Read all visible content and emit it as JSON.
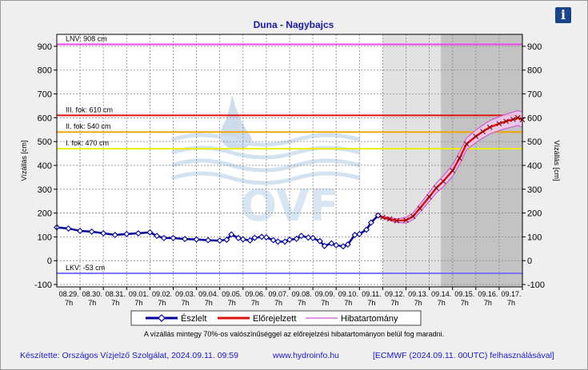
{
  "chart_data": {
    "type": "line",
    "title": "Duna - Nagybajcs",
    "ylabel": "Vízállás [cm]",
    "ylabel_right": "Vízállás [cm]",
    "ylim": [
      -110,
      950
    ],
    "yticks": [
      -100,
      0,
      100,
      200,
      300,
      400,
      500,
      600,
      700,
      800,
      900
    ],
    "xlim": [
      0,
      20
    ],
    "date_labels": [
      "08.29.",
      "08.30.",
      "08.31.",
      "09.01.",
      "09.02.",
      "09.03.",
      "09.04.",
      "09.05.",
      "09.06.",
      "09.07.",
      "09.08.",
      "09.09.",
      "09.10.",
      "09.11.",
      "09.12.",
      "09.13.",
      "09.14.",
      "09.15.",
      "09.16.",
      "09.17."
    ],
    "hour_label": "7h",
    "reference_lines": [
      {
        "label": "LNV: 908 cm",
        "value": 908,
        "color": "#ee44ee"
      },
      {
        "label": "III. fok: 610 cm",
        "value": 610,
        "color": "#e01010"
      },
      {
        "label": "II. fok: 540 cm",
        "value": 540,
        "color": "#f0a800"
      },
      {
        "label": "I. fok: 470 cm",
        "value": 470,
        "color": "#eeee00"
      },
      {
        "label": "LKV: -53 cm",
        "value": -53,
        "color": "#7777ff"
      }
    ],
    "shaded_regions": [
      {
        "from": 14.0,
        "to": 16.5,
        "color": "#e2e2e2"
      },
      {
        "from": 16.5,
        "to": 20.0,
        "color": "#c3c3c3"
      }
    ],
    "series": [
      {
        "name": "Észlelt",
        "color": "#00009c",
        "x": [
          0,
          0.5,
          1,
          1.5,
          2,
          2.5,
          3,
          3.5,
          4,
          4.3,
          4.6,
          5,
          5.5,
          6,
          6.5,
          7,
          7.3,
          7.5,
          7.8,
          8,
          8.3,
          8.5,
          8.8,
          9,
          9.3,
          9.5,
          9.8,
          10,
          10.3,
          10.5,
          10.8,
          11,
          11.3,
          11.5,
          11.8,
          12,
          12.3,
          12.5,
          12.8,
          13,
          13.3,
          13.5,
          13.8
        ],
        "values": [
          140,
          135,
          125,
          122,
          115,
          108,
          112,
          115,
          119,
          104,
          95,
          95,
          91,
          89,
          86,
          84,
          88,
          110,
          95,
          90,
          85,
          96,
          100,
          98,
          86,
          80,
          80,
          88,
          92,
          104,
          97,
          95,
          82,
          62,
          73,
          65,
          60,
          68,
          108,
          112,
          130,
          160,
          190
        ]
      },
      {
        "name": "Előrejelzett",
        "color": "#dd1010",
        "x": [
          13.8,
          14,
          14.3,
          14.6,
          15,
          15.3,
          15.6,
          16,
          16.3,
          16.6,
          17,
          17.3,
          17.6,
          18,
          18.3,
          18.6,
          19,
          19.3,
          19.6,
          19.8,
          20
        ],
        "values": [
          190,
          182,
          175,
          168,
          170,
          186,
          220,
          268,
          305,
          333,
          378,
          430,
          490,
          522,
          542,
          560,
          575,
          585,
          593,
          600,
          592
        ]
      },
      {
        "name": "Hibatartomány",
        "color": "#cc55cc",
        "x": [
          13.8,
          14,
          14.3,
          14.6,
          15,
          15.3,
          15.6,
          16,
          16.3,
          16.6,
          17,
          17.3,
          17.6,
          18,
          18.3,
          18.6,
          19,
          19.3,
          19.6,
          19.8,
          20
        ],
        "upper": [
          192,
          186,
          181,
          176,
          182,
          200,
          237,
          287,
          326,
          356,
          402,
          455,
          515,
          548,
          569,
          588,
          604,
          615,
          624,
          630,
          624
        ],
        "lower": [
          188,
          178,
          169,
          160,
          158,
          172,
          203,
          249,
          284,
          310,
          354,
          405,
          465,
          496,
          515,
          532,
          546,
          555,
          562,
          568,
          560
        ]
      }
    ]
  },
  "legend": {
    "observed": "Észlelt",
    "forecast": "Előrejelzett",
    "error_band": "Hibatartomány"
  },
  "watermark": "OVF",
  "note": "A vízállás mintegy 70%-os valószínűséggel az előrejelzési hibatartományon belül fog maradni.",
  "footer": {
    "author": "Készítette: Országos Vízjelző Szolgálat, 2024.09.11. 09:59",
    "website": "www.hydroinfo.hu",
    "model": "[ECMWF (2024.09.11. 00UTC) felhasználásával]"
  },
  "info_icon": "info-icon"
}
